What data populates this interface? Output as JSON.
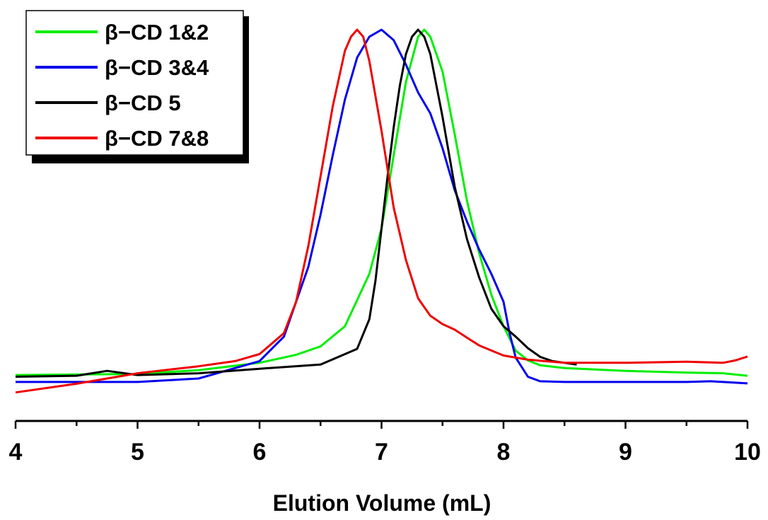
{
  "chart_data": {
    "type": "line",
    "xlabel": "Elution Volume (mL)",
    "ylabel": "",
    "xlim": [
      4,
      10
    ],
    "ylim": [
      0,
      1
    ],
    "x_ticks": [
      "4",
      "5",
      "6",
      "7",
      "8",
      "9",
      "10"
    ],
    "grid": false,
    "legend_position": "top-left",
    "series": [
      {
        "name": "β−CD 1&2",
        "color": "#00ee00",
        "x": [
          4.0,
          5.0,
          5.5,
          6.0,
          6.3,
          6.5,
          6.7,
          6.9,
          7.0,
          7.1,
          7.2,
          7.3,
          7.35,
          7.4,
          7.5,
          7.6,
          7.7,
          7.8,
          7.9,
          8.0,
          8.1,
          8.2,
          8.3,
          8.5,
          9.0,
          9.5,
          9.8,
          10.0
        ],
        "y": [
          0.01,
          0.013,
          0.024,
          0.045,
          0.068,
          0.092,
          0.15,
          0.3,
          0.43,
          0.64,
          0.85,
          0.98,
          1.0,
          0.98,
          0.88,
          0.7,
          0.51,
          0.36,
          0.24,
          0.15,
          0.08,
          0.052,
          0.038,
          0.03,
          0.022,
          0.017,
          0.015,
          0.008
        ]
      },
      {
        "name": "β−CD 3&4",
        "color": "#0000ee",
        "x": [
          4.0,
          5.0,
          5.5,
          6.0,
          6.2,
          6.4,
          6.5,
          6.6,
          6.7,
          6.8,
          6.9,
          7.0,
          7.1,
          7.2,
          7.3,
          7.4,
          7.5,
          7.6,
          7.7,
          7.8,
          7.9,
          8.0,
          8.05,
          8.1,
          8.2,
          8.3,
          8.5,
          9.0,
          9.5,
          9.7,
          10.0
        ],
        "y": [
          -0.01,
          -0.01,
          0.0,
          0.05,
          0.12,
          0.32,
          0.47,
          0.64,
          0.8,
          0.92,
          0.98,
          1.0,
          0.97,
          0.9,
          0.82,
          0.76,
          0.66,
          0.54,
          0.45,
          0.37,
          0.3,
          0.22,
          0.13,
          0.06,
          0.005,
          -0.008,
          -0.01,
          -0.01,
          -0.01,
          -0.008,
          -0.014
        ]
      },
      {
        "name": "β−CD 5",
        "color": "#000000",
        "x": [
          4.0,
          4.5,
          4.75,
          5.0,
          5.5,
          6.0,
          6.5,
          6.8,
          6.9,
          6.95,
          7.0,
          7.05,
          7.1,
          7.15,
          7.2,
          7.25,
          7.3,
          7.35,
          7.4,
          7.5,
          7.6,
          7.7,
          7.8,
          7.9,
          8.0,
          8.1,
          8.2,
          8.3,
          8.4,
          8.5,
          8.6
        ],
        "y": [
          0.005,
          0.008,
          0.022,
          0.01,
          0.015,
          0.028,
          0.04,
          0.085,
          0.17,
          0.28,
          0.43,
          0.58,
          0.72,
          0.84,
          0.93,
          0.98,
          1.0,
          0.98,
          0.93,
          0.75,
          0.55,
          0.4,
          0.29,
          0.2,
          0.15,
          0.12,
          0.087,
          0.062,
          0.05,
          0.045,
          0.04
        ]
      },
      {
        "name": "β−CD 7&8",
        "color": "#ee0000",
        "x": [
          4.0,
          4.5,
          5.0,
          5.5,
          5.8,
          6.0,
          6.2,
          6.3,
          6.4,
          6.5,
          6.6,
          6.7,
          6.75,
          6.8,
          6.85,
          6.9,
          7.0,
          7.1,
          7.2,
          7.3,
          7.4,
          7.5,
          7.6,
          7.7,
          7.8,
          8.0,
          8.2,
          8.5,
          9.0,
          9.5,
          9.8,
          9.9,
          10.0
        ],
        "y": [
          -0.04,
          -0.015,
          0.015,
          0.035,
          0.05,
          0.07,
          0.13,
          0.22,
          0.38,
          0.58,
          0.78,
          0.94,
          0.98,
          1.0,
          0.98,
          0.91,
          0.71,
          0.49,
          0.34,
          0.23,
          0.18,
          0.156,
          0.14,
          0.117,
          0.095,
          0.066,
          0.054,
          0.045,
          0.045,
          0.048,
          0.045,
          0.052,
          0.063
        ]
      }
    ]
  }
}
